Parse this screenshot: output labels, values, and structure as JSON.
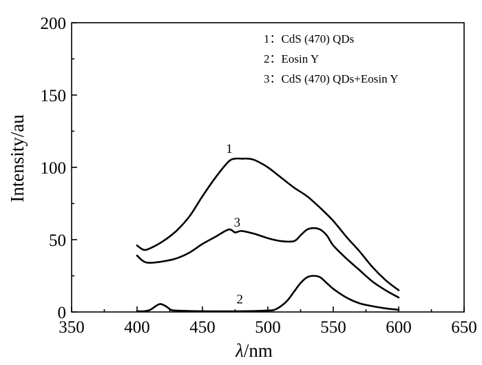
{
  "chart_data": {
    "type": "line",
    "xlabel_symbol": "λ",
    "xlabel_unit": "/nm",
    "ylabel": "Intensity/au",
    "xlim": [
      350,
      650
    ],
    "ylim": [
      0,
      200
    ],
    "x_ticks": [
      350,
      400,
      450,
      500,
      550,
      600,
      650
    ],
    "y_ticks": [
      0,
      50,
      100,
      150,
      200
    ],
    "legend_position": "top-right",
    "legend": [
      "1：CdS (470) QDs",
      "2：Eosin Y",
      "3：CdS (470) QDs+Eosin Y"
    ],
    "series": [
      {
        "name": "1",
        "x": [
          400,
          405,
          410,
          420,
          430,
          440,
          450,
          460,
          470,
          475,
          480,
          485,
          490,
          500,
          510,
          520,
          530,
          540,
          550,
          560,
          570,
          580,
          590,
          600
        ],
        "values": [
          46,
          43,
          44,
          49,
          56,
          66,
          80,
          93,
          104,
          106,
          106,
          106,
          105,
          100,
          93,
          86,
          80,
          72,
          63,
          52,
          42,
          31,
          22,
          15
        ]
      },
      {
        "name": "2",
        "x": [
          400,
          405,
          410,
          415,
          418,
          422,
          426,
          430,
          450,
          480,
          500,
          505,
          510,
          515,
          520,
          525,
          530,
          535,
          540,
          545,
          550,
          560,
          570,
          580,
          590,
          600
        ],
        "values": [
          0.5,
          0.5,
          1.5,
          4.5,
          5.5,
          4,
          1.5,
          1,
          0.5,
          0.5,
          1,
          1.5,
          4,
          8,
          14,
          20,
          24,
          25,
          24,
          20,
          16,
          10,
          6,
          4,
          2.5,
          1.5
        ]
      },
      {
        "name": "3",
        "x": [
          400,
          405,
          410,
          420,
          430,
          440,
          450,
          460,
          470,
          475,
          480,
          490,
          500,
          510,
          520,
          525,
          530,
          535,
          540,
          545,
          550,
          560,
          570,
          580,
          590,
          600
        ],
        "values": [
          39,
          35,
          34,
          35,
          37,
          41,
          47,
          52,
          57,
          55,
          56,
          54,
          51,
          49,
          49,
          53,
          57,
          58,
          57,
          53,
          46,
          37,
          29,
          21,
          15,
          10
        ]
      }
    ],
    "curve_labels": [
      {
        "text": "1",
        "x": 480,
        "y": 110
      },
      {
        "text": "3",
        "x": 486,
        "y": 59
      },
      {
        "text": "2",
        "x": 488,
        "y": 6
      }
    ]
  }
}
